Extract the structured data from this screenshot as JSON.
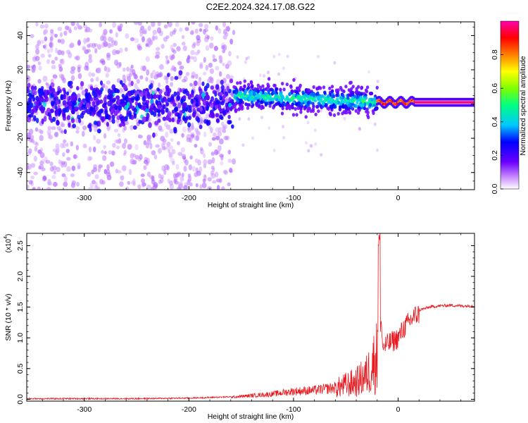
{
  "figure": {
    "title": "C2E2.2024.324.17.08.G22"
  },
  "chart_data": [
    {
      "type": "heatmap",
      "xlabel": "Height of straight line (km)",
      "ylabel": "Frequency (Hz)",
      "xlim": [
        -355,
        73
      ],
      "ylim": [
        -50,
        48
      ],
      "xticks": [
        -300,
        -200,
        -100,
        0
      ],
      "yticks": [
        -40,
        -20,
        0,
        20,
        40
      ],
      "xtick_labels": [
        "-300",
        "-200",
        "-100",
        "0"
      ],
      "ytick_labels": [
        "-40",
        "-20",
        "0",
        "20",
        "40"
      ],
      "grid": false,
      "colorbar": {
        "label": "Normalized spectral amplitude",
        "range": [
          0,
          1
        ],
        "ticks": [
          0.0,
          0.2,
          0.4,
          0.6,
          0.8
        ],
        "tick_labels": [
          "0.0",
          "0.2",
          "0.4",
          "0.6",
          "0.8"
        ],
        "colors": [
          "#ffffff",
          "#c07cff",
          "#6a00ff",
          "#0000ff",
          "#00c8ff",
          "#00ff80",
          "#80ff00",
          "#ffff00",
          "#ff8000",
          "#ff0000",
          "#ff00aa"
        ]
      },
      "regions": [
        {
          "x_range": [
            -355,
            -157
          ],
          "center_freq": 0,
          "spread_hz": 45,
          "amplitude": 0.08
        },
        {
          "x_range": [
            -355,
            -157
          ],
          "center_freq": 0,
          "spread_hz": 8,
          "amplitude": 0.25
        },
        {
          "x_range": [
            -157,
            -20
          ],
          "center_freq_start": 3,
          "center_freq_end": 1,
          "spread_hz": 7,
          "amplitude": 0.45
        },
        {
          "x_range": [
            -20,
            73
          ],
          "center_freq": 1,
          "spread_hz": 1,
          "amplitude": 0.95
        }
      ]
    },
    {
      "type": "line",
      "xlabel": "Height of straight line (km)",
      "ylabel": "SNR (10 * v/v)",
      "y_scale_label": "(x10",
      "y_scale_exponent": "4",
      "xlim": [
        -355,
        73
      ],
      "ylim": [
        -0.03,
        2.7
      ],
      "xticks": [
        -300,
        -200,
        -100,
        0
      ],
      "yticks": [
        0.0,
        0.5,
        1.0,
        1.5,
        2.0,
        2.5
      ],
      "xtick_labels": [
        "-300",
        "-200",
        "-100",
        "0"
      ],
      "ytick_labels": [
        "0.0",
        "0.5",
        "1.0",
        "1.5",
        "2.0",
        "2.5"
      ],
      "grid": false,
      "series": [
        {
          "color": "#e8191f",
          "x": [
            -355,
            -300,
            -250,
            -200,
            -160,
            -140,
            -120,
            -100,
            -80,
            -60,
            -50,
            -40,
            -30,
            -25,
            -20,
            -18,
            -15,
            -10,
            -5,
            0,
            5,
            10,
            15,
            20,
            30,
            40,
            50,
            60,
            73
          ],
          "y": [
            0.01,
            0.01,
            0.01,
            0.02,
            0.04,
            0.07,
            0.1,
            0.15,
            0.17,
            0.22,
            0.3,
            0.35,
            0.5,
            0.7,
            0.9,
            2.65,
            0.9,
            0.95,
            1.0,
            1.05,
            1.2,
            1.3,
            1.4,
            1.45,
            1.5,
            1.52,
            1.53,
            1.52,
            1.52
          ]
        }
      ]
    }
  ]
}
